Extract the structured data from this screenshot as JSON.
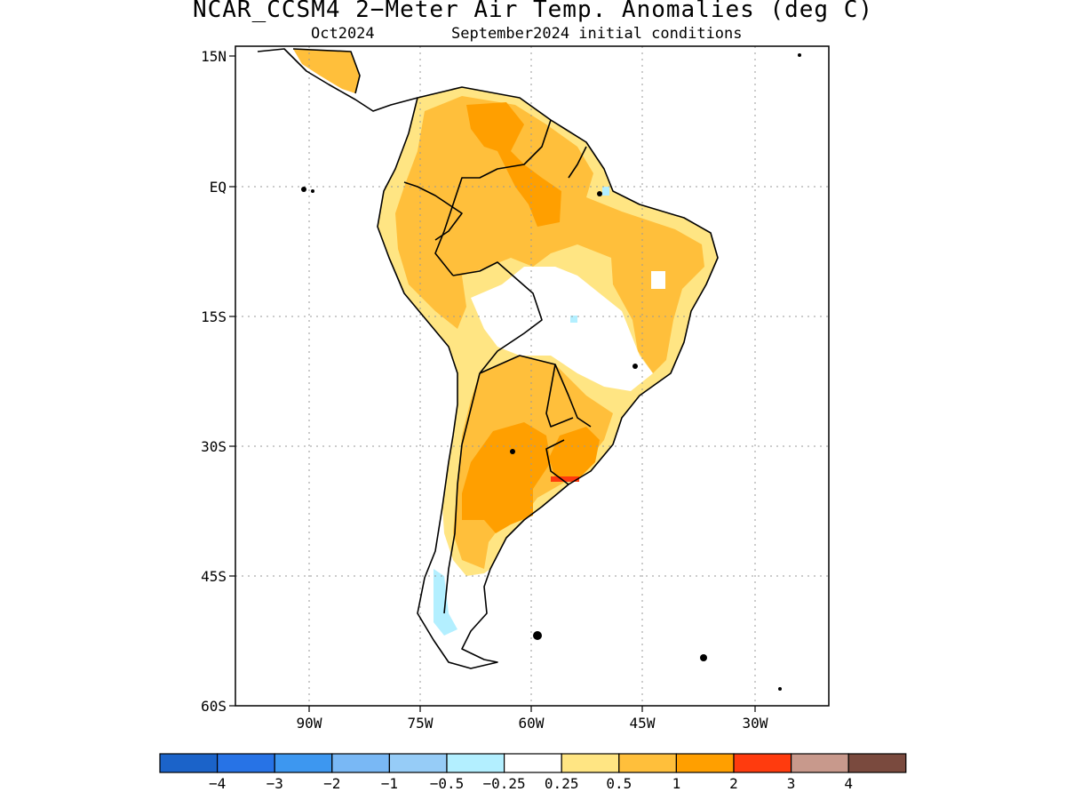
{
  "title": "NCAR_CCSM4 2−Meter Air Temp. Anomalies (deg C)",
  "subtitle_month": "Oct2024",
  "subtitle_init": "September2024 initial conditions",
  "lat_ticks": [
    "15N",
    "EQ",
    "15S",
    "30S",
    "45S",
    "60S"
  ],
  "lon_ticks": [
    "90W",
    "75W",
    "60W",
    "45W",
    "30W"
  ],
  "colorbar": {
    "colors": [
      "#1b63c9",
      "#2773e6",
      "#3d97f0",
      "#79b8f5",
      "#96ccf7",
      "#b3efff",
      "#ffffff",
      "#ffe583",
      "#ffbf3b",
      "#ff9f00",
      "#ff3b0e",
      "#c8998c",
      "#7a4a3e"
    ],
    "labels": [
      "−4",
      "−3",
      "−2",
      "−1",
      "−0.5",
      "−0.25",
      "0.25",
      "0.5",
      "1",
      "2",
      "3",
      "4"
    ]
  },
  "colors": {
    "coast": "#000000",
    "grid": "#9a9a9a"
  }
}
